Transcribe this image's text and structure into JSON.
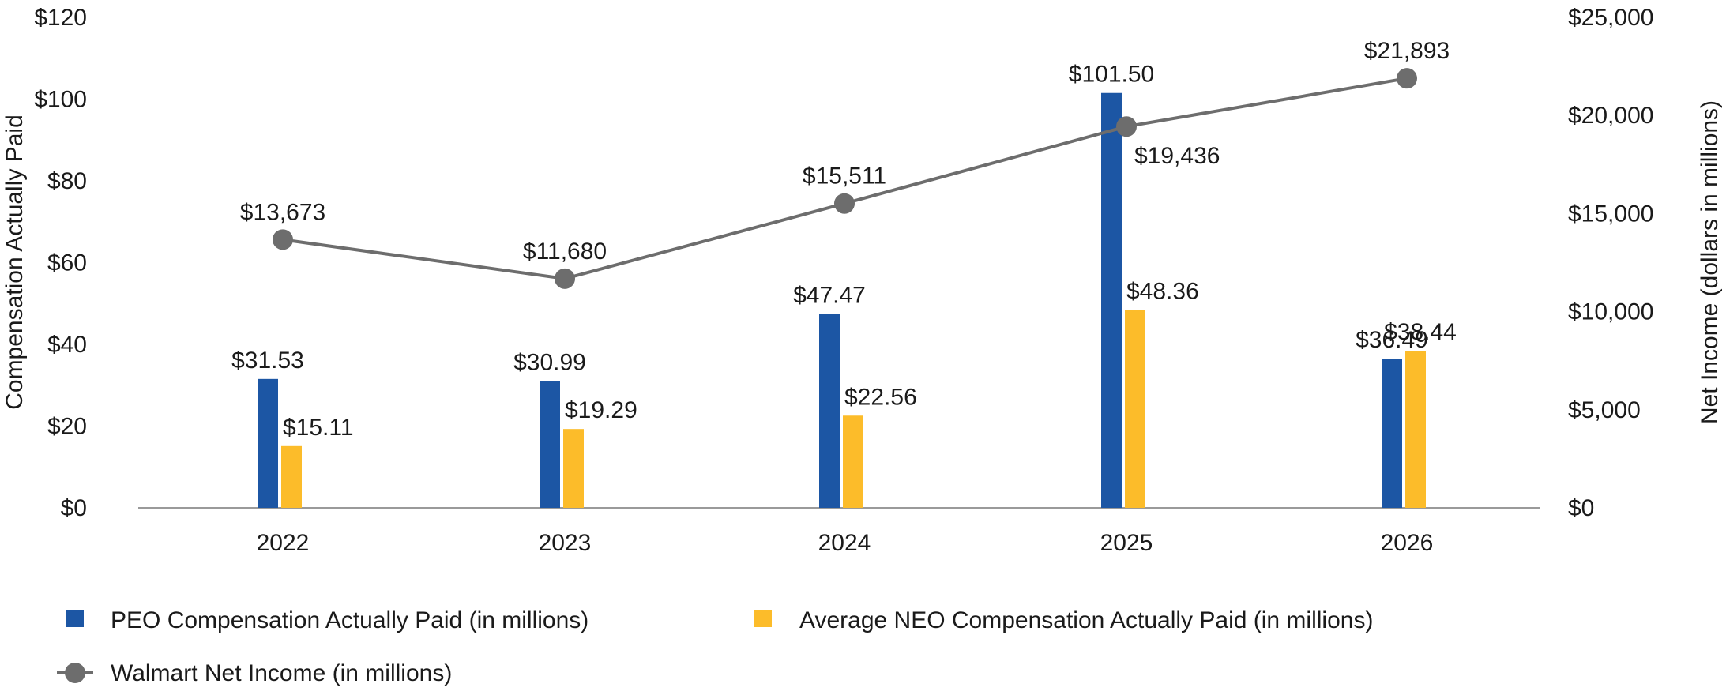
{
  "chart_data": {
    "type": "bar",
    "title": "",
    "categories": [
      "2022",
      "2023",
      "2024",
      "2025",
      "2026"
    ],
    "series": [
      {
        "name": "PEO Compensation Actually Paid (in millions)",
        "kind": "bar",
        "axis": "left",
        "color": "#1c56a4",
        "values": [
          31.53,
          30.99,
          47.47,
          101.5,
          36.49
        ],
        "labels": [
          "$31.53",
          "$30.99",
          "$47.47",
          "$101.50",
          "$36.49"
        ]
      },
      {
        "name": "Average NEO Compensation Actually Paid (in millions)",
        "kind": "bar",
        "axis": "left",
        "color": "#fcbc2a",
        "values": [
          15.11,
          19.29,
          22.56,
          48.36,
          38.44
        ],
        "labels": [
          "$15.11",
          "$19.29",
          "$22.56",
          "$48.36",
          "$38.44"
        ]
      },
      {
        "name": "Walmart Net Income (in millions)",
        "kind": "line",
        "axis": "right",
        "color": "#6d6d6d",
        "values": [
          13673,
          11680,
          15511,
          19436,
          21893
        ],
        "labels": [
          "$13,673",
          "$11,680",
          "$15,511",
          "$19,436",
          "$21,893"
        ]
      }
    ],
    "y_left": {
      "label": "Compensation Actually Paid",
      "lim": [
        0,
        120
      ],
      "ticks": [
        0,
        20,
        40,
        60,
        80,
        100,
        120
      ],
      "tick_labels": [
        "$0",
        "$20",
        "$40",
        "$60",
        "$80",
        "$100",
        "$120"
      ]
    },
    "y_right": {
      "label": "Net Income (dollars in millions)",
      "lim": [
        0,
        25000
      ],
      "ticks": [
        0,
        5000,
        10000,
        15000,
        20000,
        25000
      ],
      "tick_labels": [
        "$0",
        "$5,000",
        "$10,000",
        "$15,000",
        "$20,000",
        "$25,000"
      ]
    },
    "grid": false,
    "legend_position": "bottom"
  }
}
